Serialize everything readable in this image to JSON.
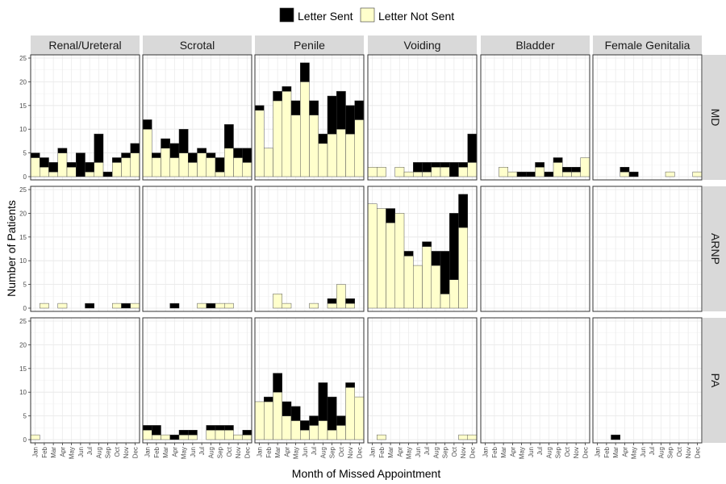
{
  "chart_data": {
    "type": "bar",
    "stacked": true,
    "facet_columns": [
      "Renal/Ureteral",
      "Scrotal",
      "Penile",
      "Voiding",
      "Bladder",
      "Female Genitalia"
    ],
    "facet_rows": [
      "MD",
      "ARNP",
      "PA"
    ],
    "categories": [
      "Jan",
      "Feb",
      "Mar",
      "Apr",
      "May",
      "Jun",
      "Jul",
      "Aug",
      "Sep",
      "Oct",
      "Nov",
      "Dec"
    ],
    "xlabel": "Month of Missed Appointment",
    "ylabel": "Number of Patients",
    "ylim": [
      0,
      25
    ],
    "yticks": [
      0,
      5,
      10,
      15,
      20,
      25
    ],
    "grid": true,
    "legend": {
      "position": "top",
      "entries": [
        {
          "name": "Letter Sent",
          "color": "#000000"
        },
        {
          "name": "Letter Not Sent",
          "color": "#ffffcc"
        }
      ]
    },
    "panels": {
      "MD": {
        "Renal/Ureteral": {
          "not_sent": [
            4,
            2,
            1,
            5,
            2,
            0,
            1,
            3,
            0,
            3,
            4,
            5
          ],
          "sent": [
            1,
            2,
            2,
            1,
            1,
            5,
            2,
            6,
            1,
            1,
            1,
            2
          ]
        },
        "Scrotal": {
          "not_sent": [
            10,
            4,
            6,
            4,
            5,
            3,
            5,
            4,
            1,
            6,
            4,
            3
          ],
          "sent": [
            2,
            1,
            2,
            3,
            5,
            2,
            1,
            1,
            3,
            5,
            2,
            3
          ]
        },
        "Penile": {
          "not_sent": [
            14,
            6,
            16,
            18,
            13,
            20,
            13,
            7,
            9,
            10,
            9,
            12
          ],
          "sent": [
            1,
            0,
            2,
            1,
            3,
            4,
            3,
            2,
            8,
            8,
            6,
            4
          ]
        },
        "Voiding": {
          "not_sent": [
            2,
            2,
            0,
            2,
            1,
            1,
            1,
            2,
            2,
            0,
            2,
            3
          ],
          "sent": [
            0,
            0,
            0,
            0,
            0,
            2,
            2,
            1,
            1,
            3,
            1,
            6
          ]
        },
        "Bladder": {
          "not_sent": [
            0,
            0,
            2,
            1,
            0,
            0,
            2,
            0,
            3,
            1,
            1,
            4
          ],
          "sent": [
            0,
            0,
            0,
            0,
            1,
            1,
            1,
            1,
            1,
            1,
            1,
            0
          ]
        },
        "Female Genitalia": {
          "not_sent": [
            0,
            0,
            0,
            1,
            0,
            0,
            0,
            0,
            1,
            0,
            0,
            1
          ],
          "sent": [
            0,
            0,
            0,
            1,
            1,
            0,
            0,
            0,
            0,
            0,
            0,
            0
          ]
        }
      },
      "ARNP": {
        "Renal/Ureteral": {
          "not_sent": [
            0,
            1,
            0,
            1,
            0,
            0,
            0,
            0,
            0,
            1,
            0,
            1
          ],
          "sent": [
            0,
            0,
            0,
            0,
            0,
            0,
            1,
            0,
            0,
            0,
            1,
            0
          ]
        },
        "Scrotal": {
          "not_sent": [
            0,
            0,
            0,
            0,
            0,
            0,
            1,
            0,
            1,
            1,
            0,
            0
          ],
          "sent": [
            0,
            0,
            0,
            1,
            0,
            0,
            0,
            1,
            0,
            0,
            0,
            0
          ]
        },
        "Penile": {
          "not_sent": [
            0,
            0,
            3,
            1,
            0,
            0,
            1,
            0,
            1,
            5,
            1,
            0
          ],
          "sent": [
            0,
            0,
            0,
            0,
            0,
            0,
            0,
            0,
            1,
            0,
            1,
            0
          ]
        },
        "Voiding": {
          "not_sent": [
            22,
            21,
            18,
            20,
            11,
            9,
            13,
            9,
            3,
            6,
            17,
            0
          ],
          "sent": [
            0,
            0,
            3,
            0,
            1,
            0,
            1,
            3,
            9,
            14,
            7,
            0
          ]
        },
        "Bladder": {
          "not_sent": [
            0,
            0,
            0,
            0,
            0,
            0,
            0,
            0,
            0,
            0,
            0,
            0
          ],
          "sent": [
            0,
            0,
            0,
            0,
            0,
            0,
            0,
            0,
            0,
            0,
            0,
            0
          ]
        },
        "Female Genitalia": {
          "not_sent": [
            0,
            0,
            0,
            0,
            0,
            0,
            0,
            0,
            0,
            0,
            0,
            0
          ],
          "sent": [
            0,
            0,
            0,
            0,
            0,
            0,
            0,
            0,
            0,
            0,
            0,
            0
          ]
        }
      },
      "PA": {
        "Renal/Ureteral": {
          "not_sent": [
            1,
            0,
            0,
            0,
            0,
            0,
            0,
            0,
            0,
            0,
            0,
            0
          ],
          "sent": [
            0,
            0,
            0,
            0,
            0,
            0,
            0,
            0,
            0,
            0,
            0,
            0
          ]
        },
        "Scrotal": {
          "not_sent": [
            2,
            1,
            1,
            0,
            1,
            1,
            0,
            2,
            2,
            2,
            1,
            1
          ],
          "sent": [
            1,
            2,
            0,
            1,
            1,
            1,
            0,
            1,
            1,
            1,
            0,
            1
          ]
        },
        "Penile": {
          "not_sent": [
            8,
            8,
            10,
            5,
            4,
            2,
            3,
            4,
            2,
            3,
            11,
            9
          ],
          "sent": [
            0,
            1,
            4,
            3,
            3,
            2,
            2,
            8,
            7,
            2,
            1,
            0
          ]
        },
        "Voiding": {
          "not_sent": [
            0,
            1,
            0,
            0,
            0,
            0,
            0,
            0,
            0,
            0,
            1,
            1
          ],
          "sent": [
            0,
            0,
            0,
            0,
            0,
            0,
            0,
            0,
            0,
            0,
            0,
            0
          ]
        },
        "Bladder": {
          "not_sent": [
            0,
            0,
            0,
            0,
            0,
            0,
            0,
            0,
            0,
            0,
            0,
            0
          ],
          "sent": [
            0,
            0,
            0,
            0,
            0,
            0,
            0,
            0,
            0,
            0,
            0,
            0
          ]
        },
        "Female Genitalia": {
          "not_sent": [
            0,
            0,
            0,
            0,
            0,
            0,
            0,
            0,
            0,
            0,
            0,
            0
          ],
          "sent": [
            0,
            0,
            1,
            0,
            0,
            0,
            0,
            0,
            0,
            0,
            0,
            0
          ]
        }
      }
    }
  }
}
